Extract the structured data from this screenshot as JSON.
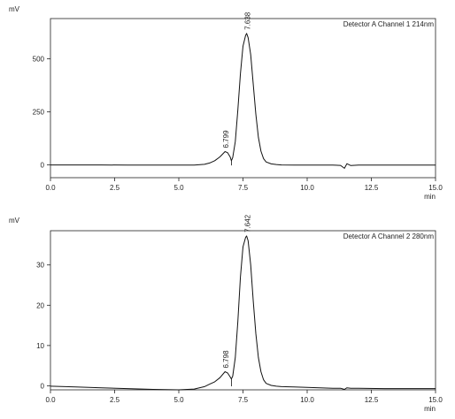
{
  "chart_data": [
    {
      "type": "line",
      "title": "",
      "ylabel": "mV",
      "xlabel": "min",
      "channel_label": "Detector A Channel 1 214nm",
      "xlim": [
        0.0,
        15.0
      ],
      "ylim": [
        -60,
        690
      ],
      "x_ticks": [
        "0.0",
        "2.5",
        "5.0",
        "7.5",
        "10.0",
        "12.5",
        "15.0"
      ],
      "y_ticks": [
        "0",
        "250",
        "500"
      ],
      "y_tick_values": [
        0,
        250,
        500
      ],
      "peaks": [
        {
          "label": "6.799",
          "x": 6.799
        },
        {
          "label": "7.638",
          "x": 7.638
        }
      ],
      "series": [
        {
          "x": [
            0.0,
            1.0,
            2.0,
            3.0,
            4.0,
            5.0,
            5.6,
            6.0,
            6.2,
            6.4,
            6.6,
            6.8,
            6.9,
            7.0,
            7.05,
            7.1,
            7.2,
            7.3,
            7.4,
            7.5,
            7.6,
            7.64,
            7.7,
            7.8,
            7.9,
            8.0,
            8.1,
            8.2,
            8.3,
            8.4,
            8.6,
            8.8,
            9.0,
            9.5,
            10.0,
            10.5,
            11.0,
            11.3,
            11.45,
            11.55,
            11.7,
            12.0,
            13.0,
            14.0,
            15.0
          ],
          "y": [
            0,
            0,
            0,
            -1,
            -1,
            -1,
            -1,
            3,
            9,
            20,
            38,
            63,
            58,
            38,
            20,
            35,
            110,
            260,
            430,
            560,
            610,
            620,
            600,
            520,
            380,
            240,
            130,
            65,
            30,
            14,
            5,
            2,
            0,
            -1,
            -1,
            -1,
            -1,
            -2,
            -16,
            6,
            -3,
            -1,
            -1,
            -1,
            -1
          ]
        }
      ]
    },
    {
      "type": "line",
      "title": "",
      "ylabel": "mV",
      "xlabel": "min",
      "channel_label": "Detector A Channel 2 280nm",
      "xlim": [
        0.0,
        15.0
      ],
      "ylim": [
        -1,
        38.5
      ],
      "x_ticks": [
        "0.0",
        "2.5",
        "5.0",
        "7.5",
        "10.0",
        "12.5",
        "15.0"
      ],
      "y_ticks": [
        "0",
        "10",
        "20",
        "30"
      ],
      "y_tick_values": [
        0,
        10,
        20,
        30
      ],
      "peaks": [
        {
          "label": "6.798",
          "x": 6.798
        },
        {
          "label": "7.642",
          "x": 7.642
        }
      ],
      "series": [
        {
          "x": [
            0.0,
            1.0,
            2.0,
            3.0,
            4.0,
            5.0,
            5.6,
            6.0,
            6.2,
            6.4,
            6.6,
            6.8,
            6.9,
            7.0,
            7.05,
            7.1,
            7.2,
            7.3,
            7.4,
            7.5,
            7.6,
            7.64,
            7.7,
            7.8,
            7.9,
            8.0,
            8.1,
            8.2,
            8.3,
            8.4,
            8.6,
            8.8,
            9.0,
            9.5,
            10.0,
            10.5,
            11.0,
            11.3,
            11.45,
            11.55,
            11.7,
            12.0,
            13.0,
            14.0,
            15.0
          ],
          "y": [
            -0.1,
            -0.3,
            -0.5,
            -0.7,
            -0.9,
            -1.0,
            -0.8,
            -0.2,
            0.4,
            1.0,
            2.0,
            3.5,
            3.2,
            2.2,
            1.7,
            2.4,
            7.0,
            16.0,
            27.0,
            34.5,
            36.8,
            37.2,
            36.0,
            30.0,
            21.0,
            13.0,
            7.0,
            3.5,
            1.5,
            0.6,
            0.1,
            -0.1,
            -0.2,
            -0.3,
            -0.4,
            -0.5,
            -0.6,
            -0.6,
            -0.9,
            -0.5,
            -0.6,
            -0.6,
            -0.7,
            -0.7,
            -0.7
          ]
        }
      ]
    }
  ]
}
